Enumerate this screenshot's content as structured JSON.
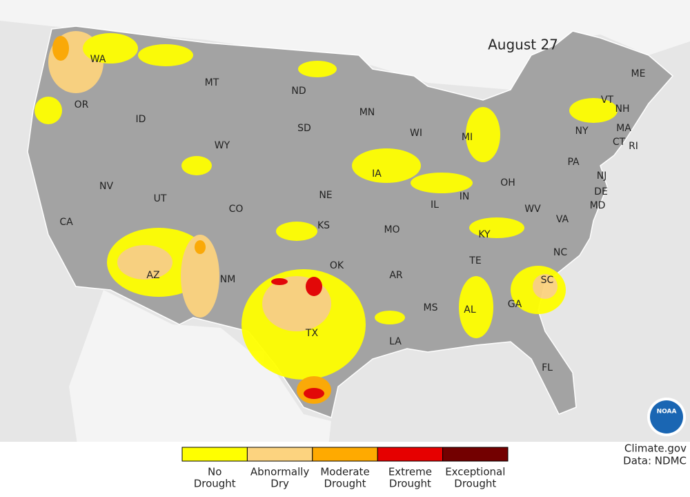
{
  "date": "August 27",
  "states": [
    "WA",
    "OR",
    "CA",
    "NV",
    "ID",
    "MT",
    "WY",
    "UT",
    "CO",
    "AZ",
    "NM",
    "ND",
    "SD",
    "NE",
    "KS",
    "OK",
    "TX",
    "MN",
    "IA",
    "MO",
    "AR",
    "LA",
    "WI",
    "IL",
    "MI",
    "IN",
    "OH",
    "KY",
    "TE",
    "MS",
    "AL",
    "GA",
    "FL",
    "SC",
    "NC",
    "VA",
    "WV",
    "PA",
    "NY",
    "NJ",
    "DE",
    "MD",
    "VT",
    "NH",
    "MA",
    "CT",
    "RI",
    "ME"
  ],
  "legend": [
    {
      "lines": [
        "No",
        "Drought"
      ],
      "color": "#ffff00"
    },
    {
      "lines": [
        "Abnormally",
        "Dry"
      ],
      "color": "#fcd37f"
    },
    {
      "lines": [
        "Moderate",
        "Drought"
      ],
      "color": "#ffaa00"
    },
    {
      "lines": [
        "Extreme",
        "Drought"
      ],
      "color": "#e60000"
    },
    {
      "lines": [
        "Exceptional",
        "Drought"
      ],
      "color": "#730000"
    }
  ],
  "logo": "NOAA",
  "credit": "Climate.gov",
  "source": "Data: NDMC"
}
